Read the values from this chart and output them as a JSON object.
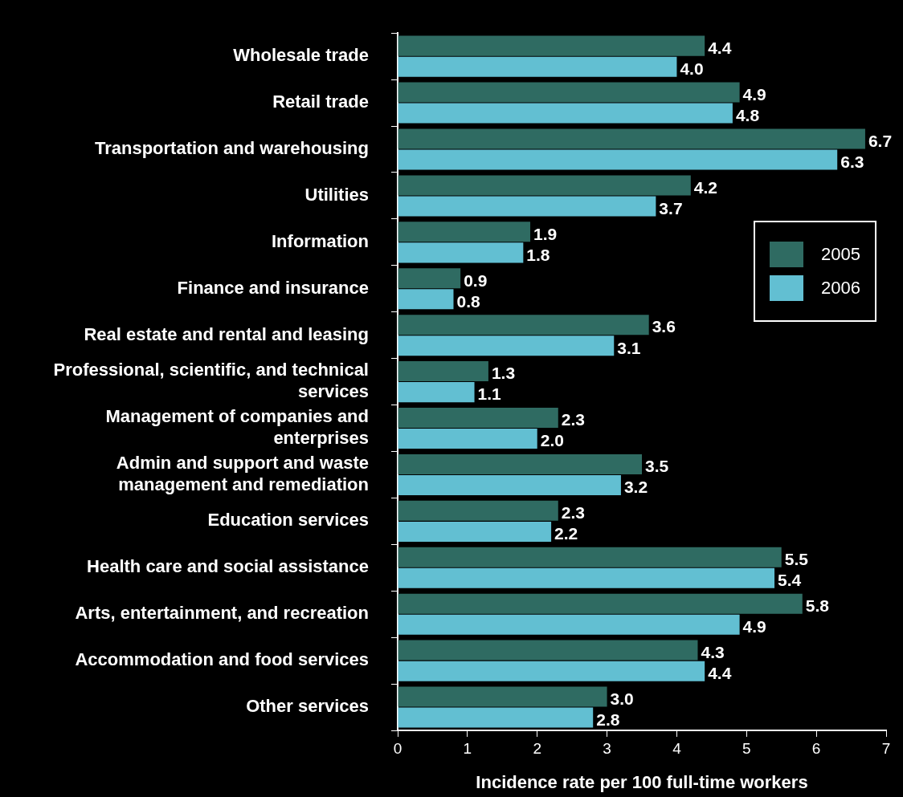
{
  "chart_data": {
    "type": "bar",
    "orientation": "horizontal",
    "xlabel": "Incidence rate per 100 full-time workers",
    "categories": [
      "Wholesale trade",
      "Retail trade",
      "Transportation and warehousing",
      "Utilities",
      "Information",
      "Finance and insurance",
      "Real estate and rental and leasing",
      "Professional, scientific, and technical services",
      "Management of companies and enterprises",
      "Admin and support and waste management and remediation",
      "Education services",
      "Health care and social assistance",
      "Arts, entertainment, and recreation",
      "Accommodation and food services",
      "Other services"
    ],
    "series": [
      {
        "name": "2005",
        "color": "#2f6b62",
        "values": [
          4.4,
          4.9,
          6.7,
          4.2,
          1.9,
          0.9,
          3.6,
          1.3,
          2.3,
          3.5,
          2.3,
          5.5,
          5.8,
          4.3,
          3.0
        ],
        "value_labels": [
          "4.4",
          "4.9",
          "6.7",
          "4.2",
          "1.9",
          "0.9",
          "3.6",
          "1.3",
          "2.3",
          "3.5",
          "2.3",
          "5.5",
          "5.8",
          "4.3",
          "3.0"
        ]
      },
      {
        "name": "2006",
        "color": "#62bfd2",
        "values": [
          4.0,
          4.8,
          6.3,
          3.7,
          1.8,
          0.8,
          3.1,
          1.1,
          2.0,
          3.2,
          2.2,
          5.4,
          4.9,
          4.4,
          2.8
        ],
        "value_labels": [
          "4.0",
          "4.8",
          "6.3",
          "3.7",
          "1.8",
          "0.8",
          "3.1",
          "1.1",
          "2.0",
          "3.2",
          "2.2",
          "5.4",
          "4.9",
          "4.4",
          "2.8"
        ]
      }
    ],
    "xlim": [
      0,
      7
    ],
    "xticks": [
      0,
      1,
      2,
      3,
      4,
      5,
      6,
      7
    ],
    "grid": false,
    "legend": "right"
  }
}
